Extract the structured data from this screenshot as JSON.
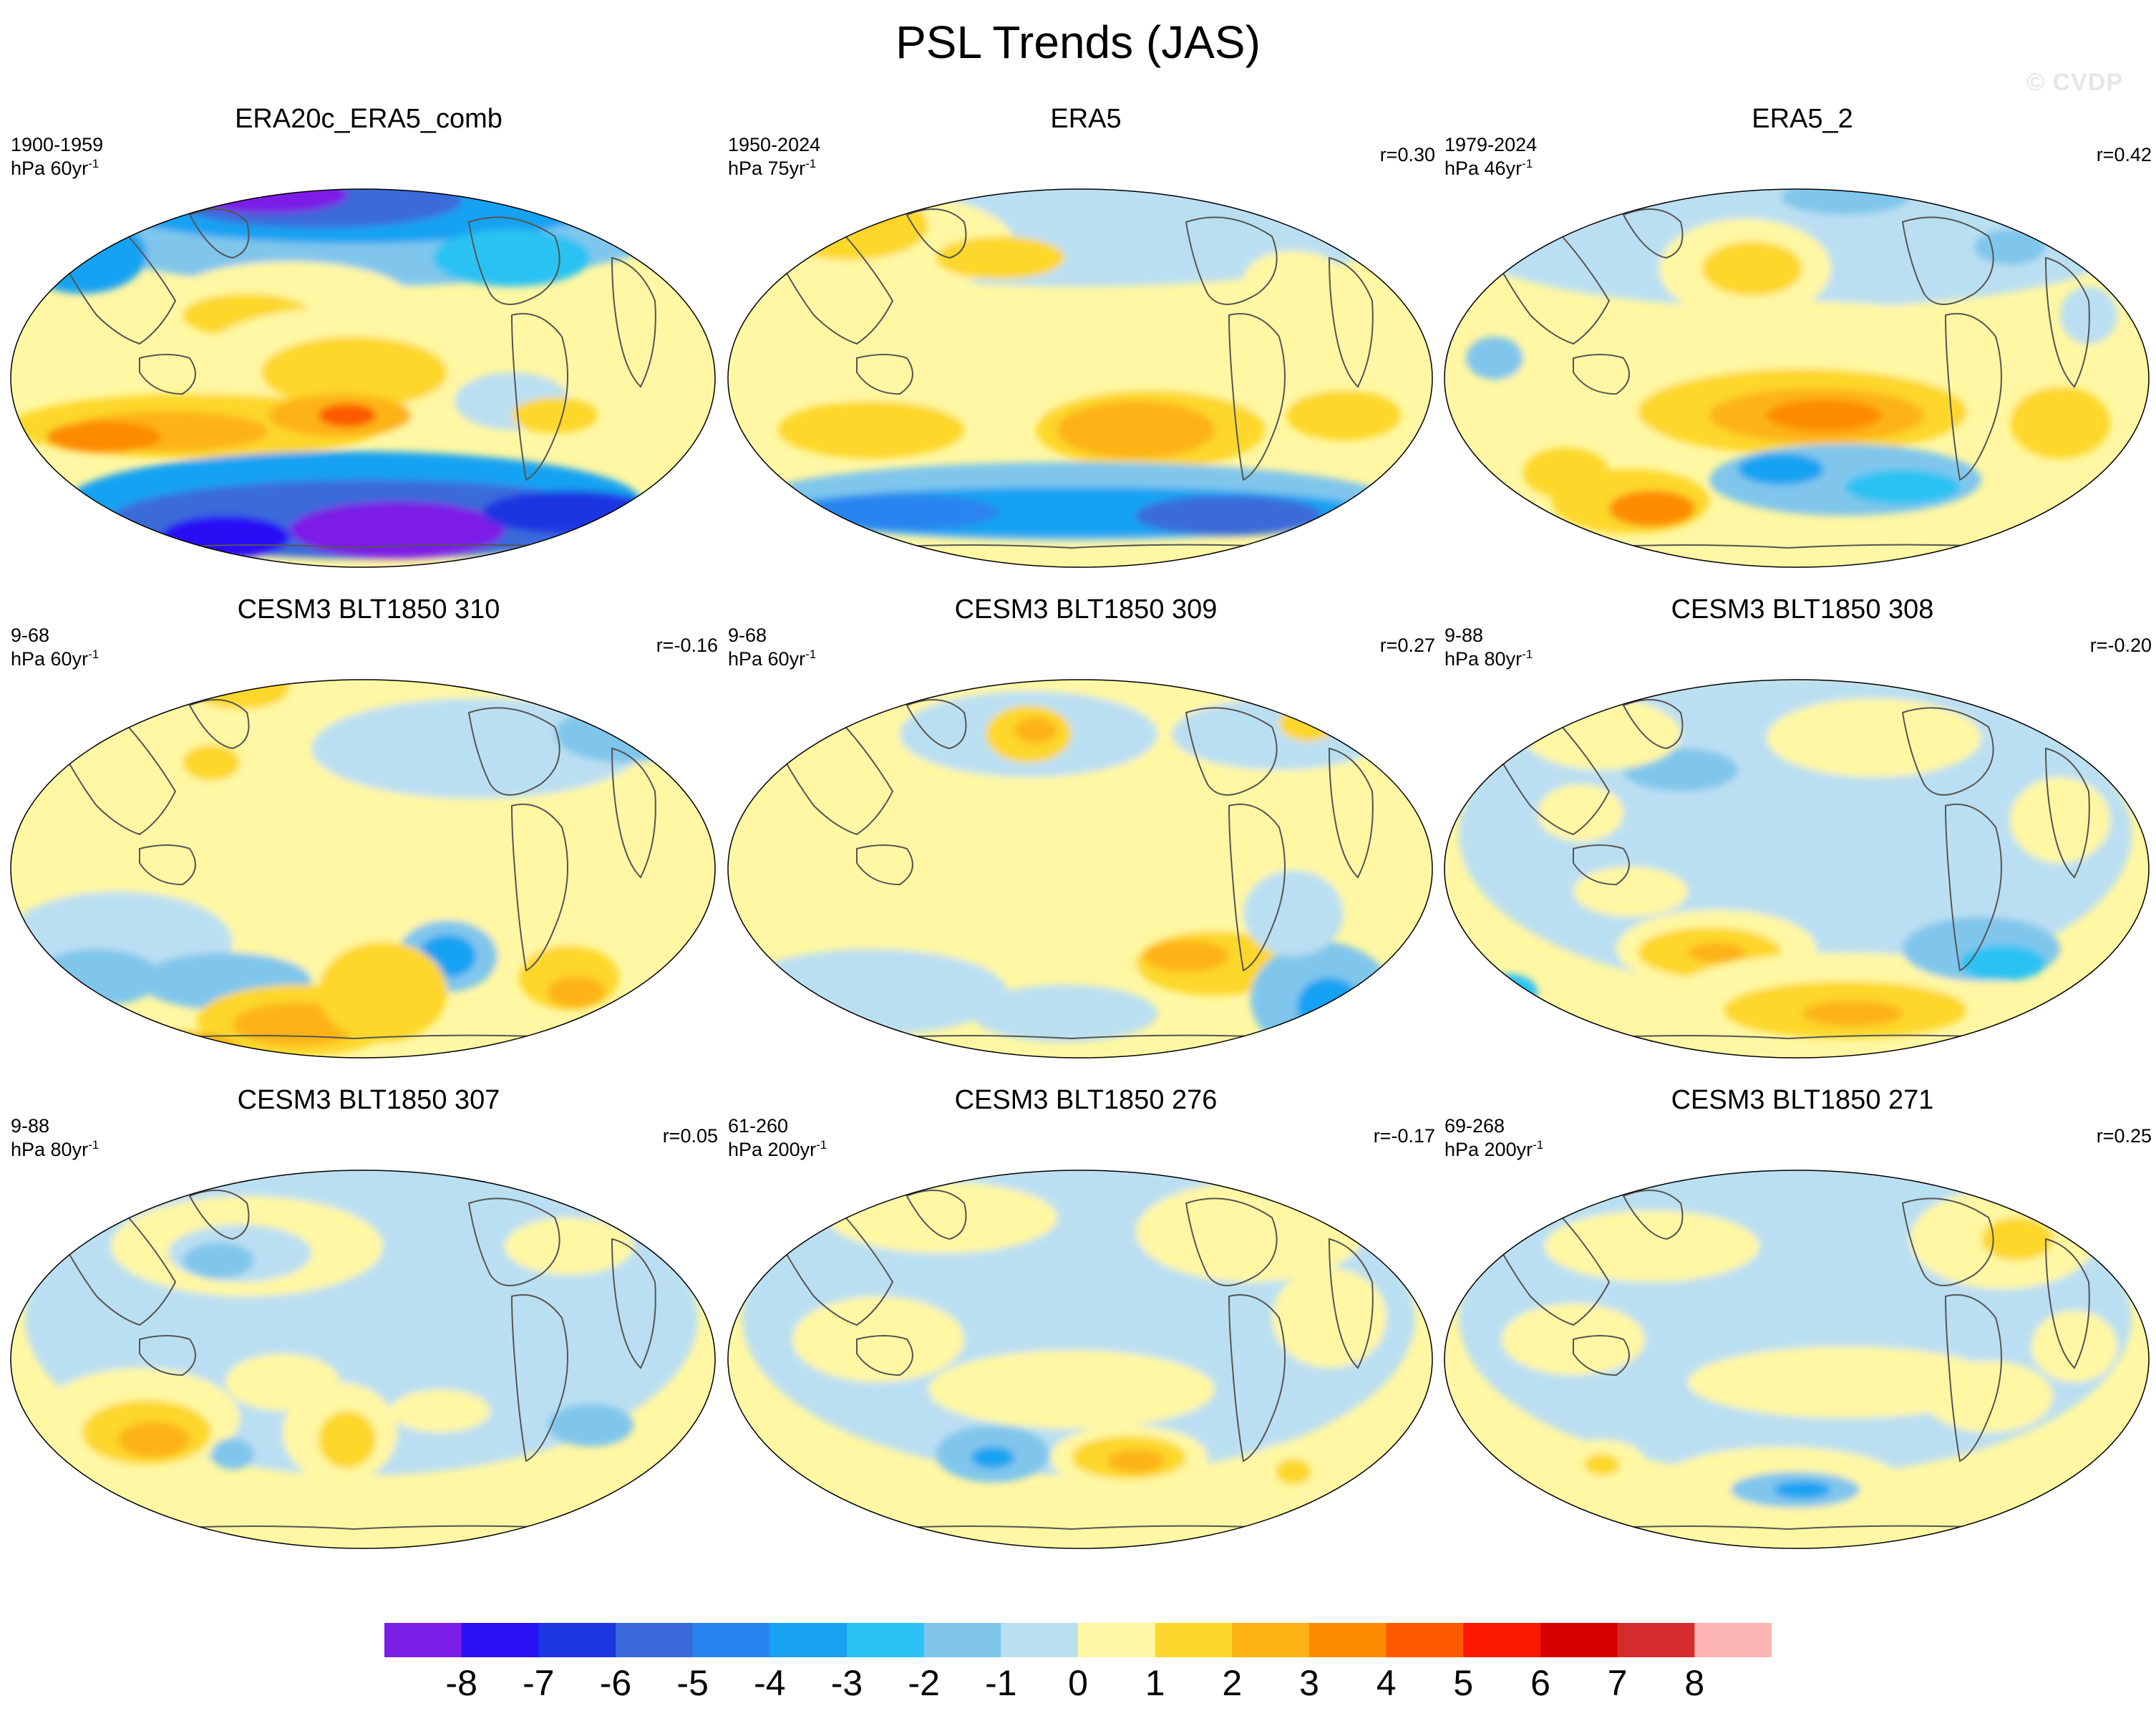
{
  "title": "PSL Trends (JAS)",
  "watermark": "© CVDP",
  "panels": [
    {
      "title": "ERA20c_ERA5_comb",
      "period": "1900-1959",
      "units": "hPa 60yr",
      "units_sup": "-1",
      "r": "",
      "pattern": "era20c"
    },
    {
      "title": "ERA5",
      "period": "1950-2024",
      "units": "hPa 75yr",
      "units_sup": "-1",
      "r": "r=0.30",
      "pattern": "era5"
    },
    {
      "title": "ERA5_2",
      "period": "1979-2024",
      "units": "hPa 46yr",
      "units_sup": "-1",
      "r": "r=0.42",
      "pattern": "era5_2"
    },
    {
      "title": "CESM3 BLT1850 310",
      "period": "9-68",
      "units": "hPa 60yr",
      "units_sup": "-1",
      "r": "r=-0.16",
      "pattern": "m310"
    },
    {
      "title": "CESM3 BLT1850 309",
      "period": "9-68",
      "units": "hPa 60yr",
      "units_sup": "-1",
      "r": "r=0.27",
      "pattern": "m309"
    },
    {
      "title": "CESM3 BLT1850 308",
      "period": "9-88",
      "units": "hPa 80yr",
      "units_sup": "-1",
      "r": "r=-0.20",
      "pattern": "m308"
    },
    {
      "title": "CESM3 BLT1850 307",
      "period": "9-88",
      "units": "hPa 80yr",
      "units_sup": "-1",
      "r": "r=0.05",
      "pattern": "m307"
    },
    {
      "title": "CESM3 BLT1850 276",
      "period": "61-260",
      "units": "hPa 200yr",
      "units_sup": "-1",
      "r": "r=-0.17",
      "pattern": "m276"
    },
    {
      "title": "CESM3 BLT1850 271",
      "period": "69-268",
      "units": "hPa 200yr",
      "units_sup": "-1",
      "r": "r=0.25",
      "pattern": "m271"
    }
  ],
  "colorbar": {
    "colors": [
      "#7b1fe6",
      "#2a10f5",
      "#1b36e3",
      "#3a6ad9",
      "#2a84f0",
      "#17a2f2",
      "#2cc2f3",
      "#80c6ec",
      "#bbdff2",
      "#fff7a3",
      "#fdd72c",
      "#fdb313",
      "#fd8b00",
      "#fd5a00",
      "#fb1a00",
      "#d90000",
      "#d42c2c",
      "#fcb3b3"
    ],
    "ticks": [
      "-8",
      "-7",
      "-6",
      "-5",
      "-4",
      "-3",
      "-2",
      "-1",
      "0",
      "1",
      "2",
      "3",
      "4",
      "5",
      "6",
      "7",
      "8"
    ]
  },
  "palette": {
    "neg8": "#7b1fe6",
    "neg7": "#2a10f5",
    "neg6": "#1b36e3",
    "neg5": "#3a6ad9",
    "neg4": "#2a84f0",
    "neg3": "#17a2f2",
    "neg2": "#2cc2f3",
    "neg1": "#80c6ec",
    "neg0": "#bbdff2",
    "pos0": "#fff7a3",
    "pos1": "#fdd72c",
    "pos2": "#fdb313",
    "pos3": "#fd8b00",
    "pos4": "#fd5a00",
    "pos5": "#fb1a00",
    "pos6": "#d90000"
  }
}
